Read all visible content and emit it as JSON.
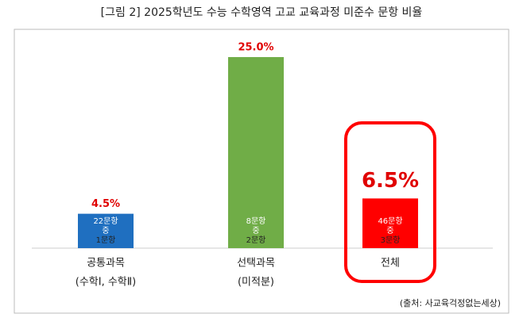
{
  "chart_data": {
    "type": "bar",
    "title": "[그림 2] 2025학년도 수능 수학영역 고교 교육과정 미준수 문항 비율",
    "categories": [
      [
        "공통과목",
        "(수학Ⅰ, 수학Ⅱ)"
      ],
      [
        "선택과목",
        "(미적분)"
      ],
      [
        "전체"
      ]
    ],
    "values": [
      4.5,
      25.0,
      6.5
    ],
    "value_labels": [
      "4.5%",
      "25.0%",
      "6.5%"
    ],
    "bar_notes": [
      [
        "22문항",
        "중",
        "1문항"
      ],
      [
        "8문항",
        "중",
        "2문항"
      ],
      [
        "46문항",
        "중",
        "3문항"
      ]
    ],
    "colors": [
      "#1f6fc0",
      "#70ad47",
      "#ff0000"
    ],
    "highlight": 2,
    "ylim": [
      0,
      25
    ],
    "source": "(출처: 사교육걱정없는세상)"
  }
}
